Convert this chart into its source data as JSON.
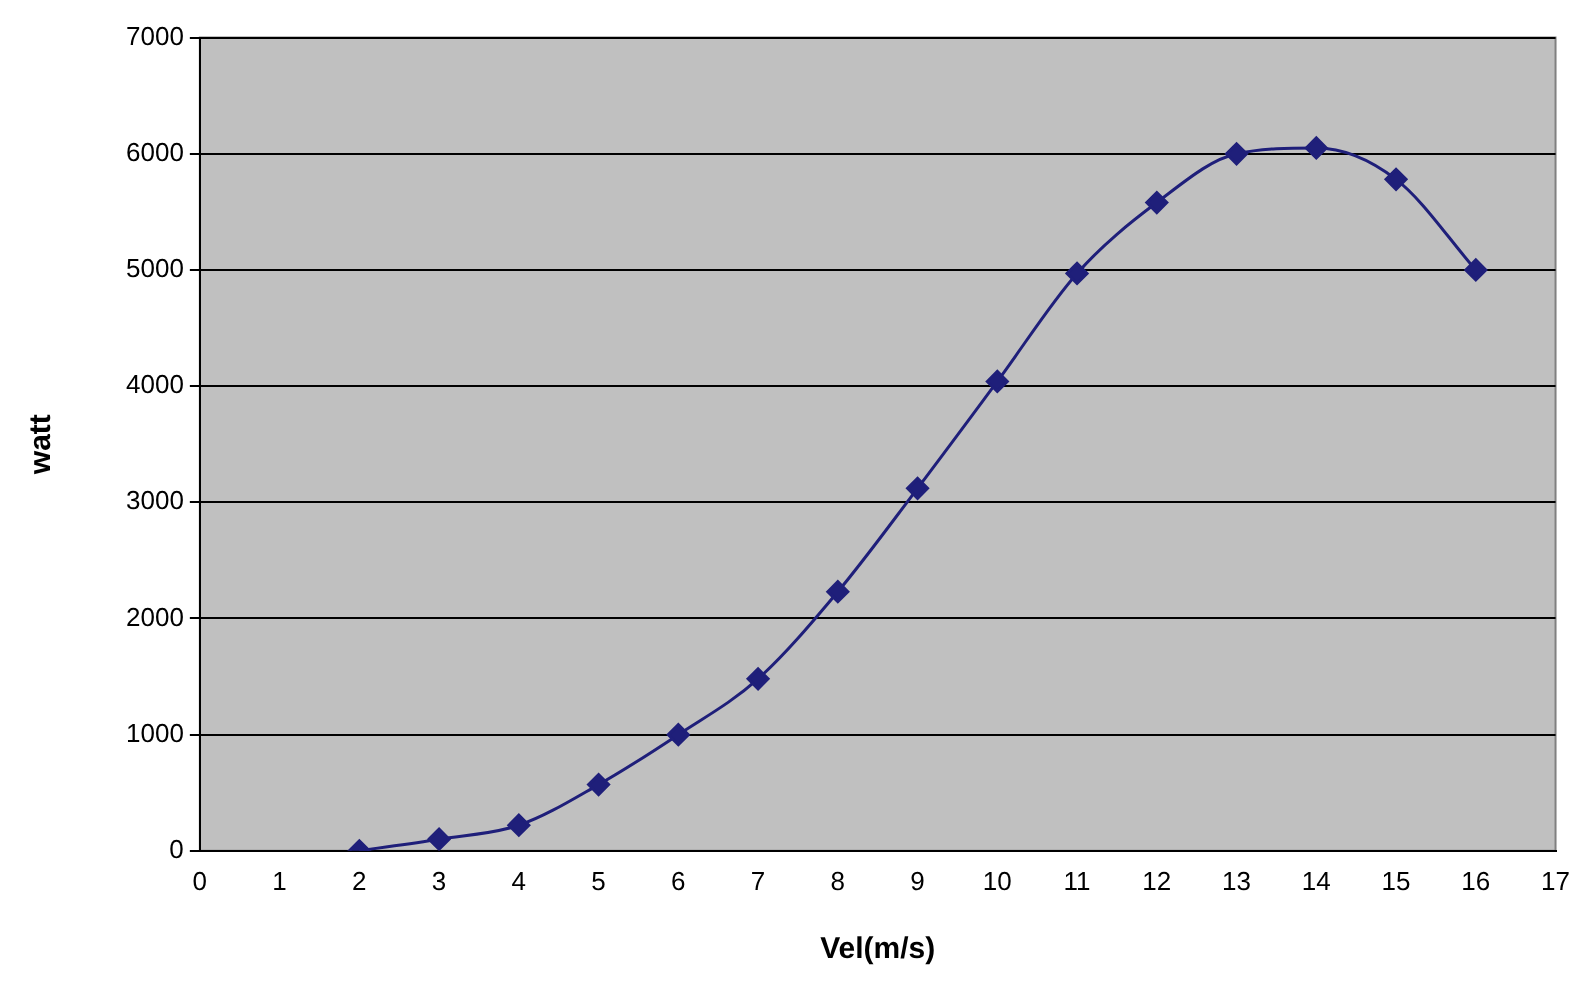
{
  "chart_data": {
    "type": "line",
    "xlabel": "Vel(m/s)",
    "ylabel": "watt",
    "x": [
      2,
      3,
      4,
      5,
      6,
      7,
      8,
      9,
      10,
      11,
      12,
      13,
      14,
      15,
      16
    ],
    "series": [
      {
        "color": "#1f1f7a",
        "values": [
          0,
          100,
          220,
          570,
          1000,
          1480,
          2230,
          3120,
          4040,
          4970,
          5580,
          6000,
          6050,
          5780,
          5000
        ]
      }
    ],
    "xlim": [
      0,
      17
    ],
    "xticks": [
      0,
      1,
      2,
      3,
      4,
      5,
      6,
      7,
      8,
      9,
      10,
      11,
      12,
      13,
      14,
      15,
      16,
      17
    ],
    "ylim": [
      0,
      7000
    ],
    "yticks": [
      0,
      1000,
      2000,
      3000,
      4000,
      5000,
      6000,
      7000
    ],
    "grid": "y",
    "legend": false,
    "marker": "diamond",
    "line_style": "solid"
  }
}
